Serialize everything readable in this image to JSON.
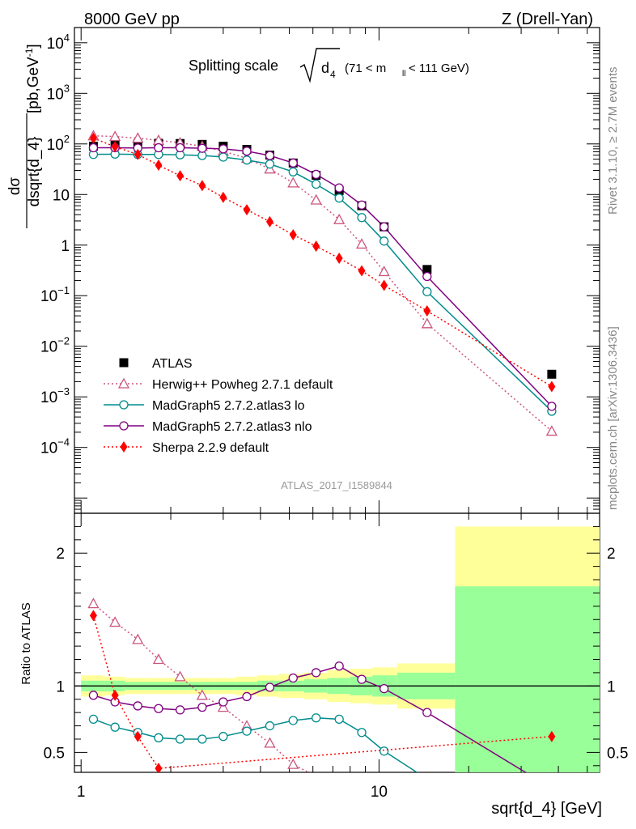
{
  "header": {
    "left": "8000 GeV pp",
    "right": "Z (Drell-Yan)"
  },
  "side_labels": {
    "rivet": "Rivet 3.1.10, ≥ 2.7M events",
    "mcplots": "mcplots.cern.ch [arXiv:1306.3436]"
  },
  "plot_title": {
    "prefix": "Splitting scale",
    "symbol": "d",
    "subscript": "4",
    "range": "(71 < m",
    "range_sub": "ll",
    "range_end": " < 111 GeV)"
  },
  "analysis_id": "ATLAS_2017_I1589844",
  "ylabel_main": {
    "numerator": "dσ",
    "denominator": "dsqrt{d_4}",
    "unit": "[pb,GeV",
    "unit_sup": "-1",
    "unit_end": "]"
  },
  "ylabel_ratio": "Ratio to ATLAS",
  "xlabel": "sqrt{d_4} [GeV]",
  "colors": {
    "atlas": "#000000",
    "herwig": "#cc5580",
    "mg_lo": "#008b8b",
    "mg_nlo": "#800080",
    "sherpa": "#ff0000",
    "band_inner": "#99ff99",
    "band_outer": "#ffff99"
  },
  "chart_data": [
    {
      "type": "scatter",
      "panel": "main",
      "xscale": "log",
      "yscale": "log",
      "xlim": [
        0.95,
        55
      ],
      "ylim": [
        5e-06,
        20000
      ],
      "x_ticks": [
        1,
        10
      ],
      "y_ticks": [
        {
          "v": 10000,
          "base": "10",
          "exp": "4"
        },
        {
          "v": 1000,
          "base": "10",
          "exp": "3"
        },
        {
          "v": 100,
          "base": "10",
          "exp": "2"
        },
        {
          "v": 10,
          "base": "10",
          "exp": ""
        },
        {
          "v": 1,
          "base": "1",
          "exp": ""
        },
        {
          "v": 0.1,
          "base": "10",
          "exp": "−1"
        },
        {
          "v": 0.01,
          "base": "10",
          "exp": "−2"
        },
        {
          "v": 0.001,
          "base": "10",
          "exp": "−3"
        },
        {
          "v": 0.0001,
          "base": "10",
          "exp": "−4"
        }
      ],
      "legend_position": "bottom-left",
      "series": [
        {
          "name": "ATLAS",
          "key": "atlas",
          "marker": "square",
          "x": [
            1.1,
            1.3,
            1.55,
            1.82,
            2.15,
            2.55,
            3.0,
            3.6,
            4.3,
            5.15,
            6.15,
            7.35,
            8.75,
            10.4,
            14.5,
            38.0
          ],
          "y": [
            90,
            95,
            100,
            103,
            102,
            98,
            90,
            78,
            60,
            42,
            24,
            12,
            6.0,
            2.3,
            0.33,
            0.0028
          ]
        },
        {
          "name": "Herwig++ Powheg 2.7.1 default",
          "key": "herwig",
          "marker": "triangle",
          "line": "dotted",
          "x": [
            1.1,
            1.3,
            1.55,
            1.82,
            2.15,
            2.55,
            3.0,
            3.6,
            4.3,
            5.15,
            6.15,
            7.35,
            8.75,
            10.4,
            14.5,
            38.0
          ],
          "y": [
            145,
            140,
            130,
            118,
            105,
            90,
            72,
            52,
            32,
            17,
            7.8,
            3.2,
            1.05,
            0.3,
            0.028,
            0.00021
          ]
        },
        {
          "name": "MadGraph5 2.7.2.atlas3 lo",
          "key": "mg_lo",
          "marker": "circle",
          "line": "solid",
          "x": [
            1.1,
            1.3,
            1.55,
            1.82,
            2.15,
            2.55,
            3.0,
            3.6,
            4.3,
            5.15,
            6.15,
            7.35,
            8.75,
            10.4,
            14.5,
            38.0
          ],
          "y": [
            62,
            63,
            62,
            62,
            61,
            59,
            55,
            48,
            40,
            28,
            16,
            8.5,
            3.5,
            1.2,
            0.12,
            0.00052
          ]
        },
        {
          "name": "MadGraph5 2.7.2.atlas3 nlo",
          "key": "mg_nlo",
          "marker": "circle",
          "line": "solid",
          "x": [
            1.1,
            1.3,
            1.55,
            1.82,
            2.15,
            2.55,
            3.0,
            3.6,
            4.3,
            5.15,
            6.15,
            7.35,
            8.75,
            10.4,
            14.5,
            38.0
          ],
          "y": [
            84,
            84,
            83,
            84,
            84,
            82,
            80,
            72,
            59,
            42,
            25,
            13.5,
            6.2,
            2.3,
            0.24,
            0.00065
          ]
        },
        {
          "name": "Sherpa 2.2.9 default",
          "key": "sherpa",
          "marker": "diamond",
          "line": "dotted",
          "x": [
            1.1,
            1.3,
            1.55,
            1.82,
            2.15,
            2.55,
            3.0,
            3.6,
            4.3,
            5.15,
            6.15,
            7.35,
            8.75,
            10.4,
            14.5,
            38.0
          ],
          "y": [
            130,
            88,
            62,
            38,
            23.5,
            15,
            8.8,
            5.0,
            2.9,
            1.6,
            0.95,
            0.55,
            0.31,
            0.16,
            0.05,
            0.0016
          ]
        }
      ]
    },
    {
      "type": "line",
      "panel": "ratio",
      "xscale": "log",
      "yscale": "linear",
      "xlim": [
        0.95,
        55
      ],
      "ylim": [
        0.35,
        2.3
      ],
      "y_ticks": [
        0.5,
        1,
        2
      ],
      "ylabel": "Ratio to ATLAS",
      "xlabel": "sqrt{d_4} [GeV]",
      "uncertainty_bands": {
        "edges": [
          1.0,
          1.2,
          1.4,
          1.7,
          2.0,
          2.3,
          2.8,
          3.3,
          3.9,
          4.6,
          5.6,
          6.7,
          8.0,
          9.5,
          11.5,
          18.0,
          55.0
        ],
        "inner_low": [
          0.96,
          0.96,
          0.97,
          0.97,
          0.97,
          0.97,
          0.97,
          0.97,
          0.96,
          0.96,
          0.95,
          0.94,
          0.93,
          0.92,
          0.9,
          0.0
        ],
        "inner_high": [
          1.04,
          1.04,
          1.03,
          1.03,
          1.03,
          1.03,
          1.03,
          1.03,
          1.04,
          1.04,
          1.05,
          1.06,
          1.07,
          1.08,
          1.1,
          1.75
        ],
        "outer_low": [
          0.92,
          0.93,
          0.94,
          0.94,
          0.94,
          0.94,
          0.94,
          0.93,
          0.92,
          0.91,
          0.9,
          0.88,
          0.87,
          0.86,
          0.83,
          0.0
        ],
        "outer_high": [
          1.08,
          1.07,
          1.06,
          1.06,
          1.06,
          1.06,
          1.06,
          1.07,
          1.08,
          1.09,
          1.1,
          1.12,
          1.13,
          1.14,
          1.17,
          2.2
        ]
      },
      "series": [
        {
          "name": "Herwig++ Powheg 2.7.1 default",
          "key": "herwig",
          "marker": "triangle",
          "line": "dotted",
          "x": [
            1.1,
            1.3,
            1.55,
            1.82,
            2.15,
            2.55,
            3.0,
            3.6,
            4.3,
            5.15,
            6.15
          ],
          "y": [
            1.62,
            1.48,
            1.35,
            1.2,
            1.07,
            0.93,
            0.84,
            0.7,
            0.57,
            0.41,
            0.32
          ]
        },
        {
          "name": "MadGraph5 2.7.2.atlas3 lo",
          "key": "mg_lo",
          "marker": "circle",
          "line": "solid",
          "x": [
            1.1,
            1.3,
            1.55,
            1.82,
            2.15,
            2.55,
            3.0,
            3.6,
            4.3,
            5.15,
            6.15,
            7.35,
            8.75,
            10.4,
            14.5
          ],
          "y": [
            0.75,
            0.69,
            0.65,
            0.61,
            0.6,
            0.6,
            0.62,
            0.66,
            0.7,
            0.74,
            0.76,
            0.75,
            0.65,
            0.51,
            0.3
          ]
        },
        {
          "name": "MadGraph5 2.7.2.atlas3 nlo",
          "key": "mg_nlo",
          "marker": "circle",
          "line": "solid",
          "x": [
            1.1,
            1.3,
            1.55,
            1.82,
            2.15,
            2.55,
            3.0,
            3.6,
            4.3,
            5.15,
            6.15,
            7.35,
            8.75,
            10.4,
            14.5,
            38.0
          ],
          "y": [
            0.93,
            0.88,
            0.85,
            0.83,
            0.82,
            0.84,
            0.88,
            0.92,
            0.99,
            1.06,
            1.1,
            1.15,
            1.05,
            0.98,
            0.8,
            0.23
          ]
        },
        {
          "name": "Sherpa 2.2.9 default",
          "key": "sherpa",
          "marker": "diamond",
          "line": "dotted",
          "x": [
            1.1,
            1.3,
            1.55,
            1.82,
            38.0
          ],
          "y": [
            1.53,
            0.93,
            0.62,
            0.38,
            0.62
          ]
        }
      ]
    }
  ]
}
